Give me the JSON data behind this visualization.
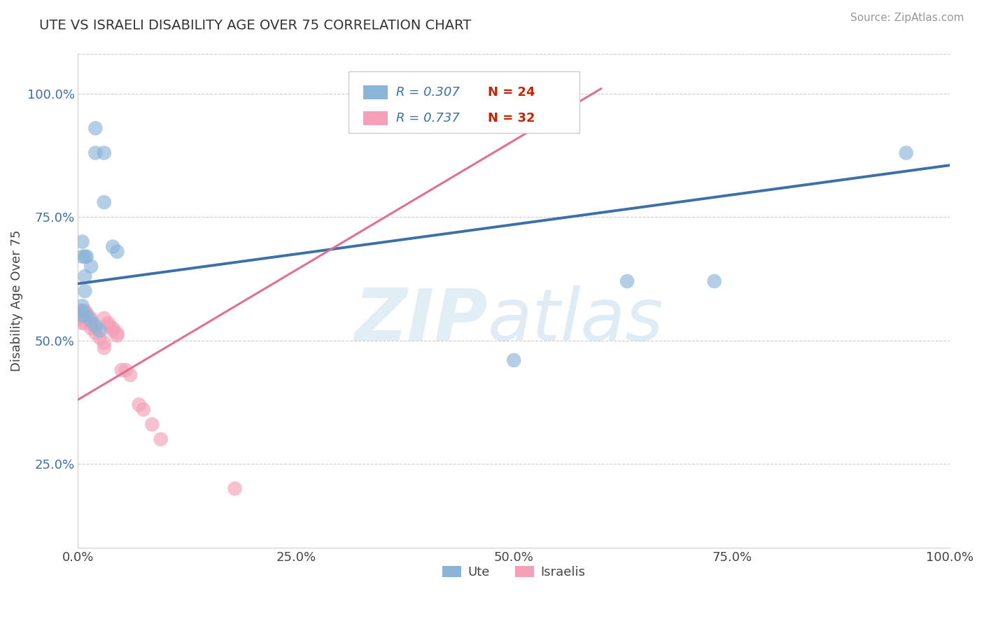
{
  "title": "UTE VS ISRAELI DISABILITY AGE OVER 75 CORRELATION CHART",
  "source": "Source: ZipAtlas.com",
  "ylabel": "Disability Age Over 75",
  "legend_r_blue": "R = 0.307",
  "legend_n_blue": "N = 24",
  "legend_r_pink": "R = 0.737",
  "legend_n_pink": "N = 32",
  "legend_label_blue": "Ute",
  "legend_label_pink": "Israelis",
  "blue_scatter_color": "#8ab4d8",
  "pink_scatter_color": "#f4a0b8",
  "blue_line_color": "#3d6fa8",
  "pink_line_color": "#e07090",
  "r_color": "#3d6fa8",
  "n_color": "#cc2200",
  "grid_color": "#cccccc",
  "bg_color": "#ffffff",
  "ute_x": [
    0.02,
    0.02,
    0.03,
    0.03,
    0.005,
    0.005,
    0.008,
    0.01,
    0.015,
    0.008,
    0.008,
    0.005,
    0.005,
    0.005,
    0.01,
    0.015,
    0.02,
    0.025,
    0.04,
    0.045,
    0.5,
    0.63,
    0.73,
    0.95
  ],
  "ute_y": [
    0.93,
    0.88,
    0.88,
    0.78,
    0.7,
    0.67,
    0.67,
    0.67,
    0.65,
    0.63,
    0.6,
    0.57,
    0.56,
    0.55,
    0.55,
    0.54,
    0.53,
    0.52,
    0.69,
    0.68,
    0.46,
    0.62,
    0.62,
    0.88
  ],
  "israeli_x": [
    0.005,
    0.005,
    0.005,
    0.005,
    0.008,
    0.008,
    0.008,
    0.01,
    0.01,
    0.015,
    0.015,
    0.015,
    0.02,
    0.02,
    0.025,
    0.03,
    0.03,
    0.035,
    0.04,
    0.045,
    0.05,
    0.055,
    0.06,
    0.07,
    0.075,
    0.085,
    0.095,
    0.03,
    0.035,
    0.04,
    0.045,
    0.18
  ],
  "israeli_y": [
    0.56,
    0.555,
    0.545,
    0.535,
    0.56,
    0.55,
    0.535,
    0.555,
    0.545,
    0.545,
    0.535,
    0.525,
    0.525,
    0.515,
    0.505,
    0.495,
    0.485,
    0.53,
    0.52,
    0.51,
    0.44,
    0.44,
    0.43,
    0.37,
    0.36,
    0.33,
    0.3,
    0.545,
    0.535,
    0.525,
    0.515,
    0.2
  ],
  "xlim": [
    0.0,
    1.0
  ],
  "ylim": [
    0.08,
    1.08
  ],
  "xtick_positions": [
    0.0,
    0.25,
    0.5,
    0.75,
    1.0
  ],
  "xtick_labels": [
    "0.0%",
    "25.0%",
    "50.0%",
    "75.0%",
    "100.0%"
  ],
  "ytick_positions": [
    0.25,
    0.5,
    0.75,
    1.0
  ],
  "ytick_labels": [
    "25.0%",
    "50.0%",
    "75.0%",
    "100.0%"
  ],
  "blue_line_x": [
    0.0,
    1.0
  ],
  "blue_line_y": [
    0.615,
    0.855
  ],
  "pink_line_x0": 0.0,
  "pink_line_y0": 0.38,
  "pink_line_slope": 1.05,
  "pink_line_x1": 0.6
}
